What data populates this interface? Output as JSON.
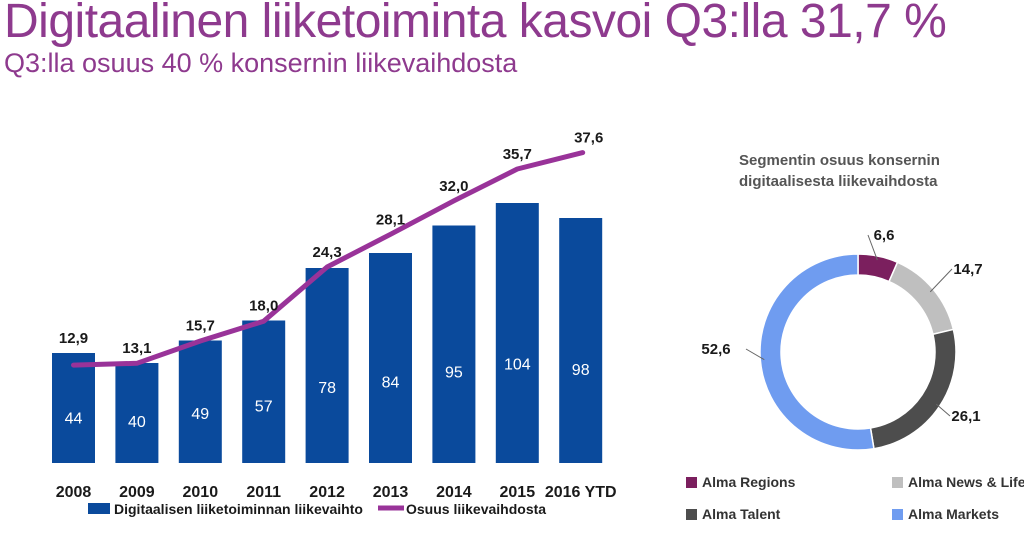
{
  "header": {
    "title": "Digitaalinen liiketoiminta kasvoi Q3:lla 31,7 %",
    "subtitle": "Q3:lla osuus 40 % konsernin liikevaihdosta"
  },
  "colors": {
    "bar": "#0a4a9c",
    "line": "#993399",
    "title": "#8e3a8e"
  },
  "chart_data": [
    {
      "type": "bar",
      "categories": [
        "2008",
        "2009",
        "2010",
        "2011",
        "2012",
        "2013",
        "2014",
        "2015",
        "2016 YTD"
      ],
      "series": [
        {
          "name": "Digitaalisen liiketoiminnan liikevaihto",
          "type": "bar",
          "values": [
            44,
            40,
            49,
            57,
            78,
            84,
            95,
            104,
            98
          ],
          "labels": [
            "44",
            "40",
            "49",
            "57",
            "78",
            "84",
            "95",
            "104",
            "98"
          ]
        },
        {
          "name": "Osuus liikevaihdosta",
          "type": "line",
          "values": [
            12.9,
            13.1,
            15.7,
            18.0,
            24.3,
            28.1,
            32.0,
            35.7,
            37.6
          ],
          "labels": [
            "12,9",
            "13,1",
            "15,7",
            "18,0",
            "24,3",
            "28,1",
            "32,0",
            "35,7",
            "37,6"
          ]
        }
      ],
      "legend_position": "bottom"
    },
    {
      "type": "pie",
      "title_lines": [
        "Segmentin osuus konsernin",
        "digitaalisesta liikevaihdosta"
      ],
      "slices": [
        {
          "name": "Alma Regions",
          "value": 6.6,
          "label": "6,6",
          "color": "#7b1f5e"
        },
        {
          "name": "Alma News & Life",
          "value": 14.7,
          "label": "14,7",
          "color": "#bfbfbf"
        },
        {
          "name": "Alma Talent",
          "value": 26.1,
          "label": "26,1",
          "color": "#4d4d4d"
        },
        {
          "name": "Alma Markets",
          "value": 52.6,
          "label": "52,6",
          "color": "#6f9cf0"
        }
      ],
      "legend_position": "bottom"
    }
  ]
}
